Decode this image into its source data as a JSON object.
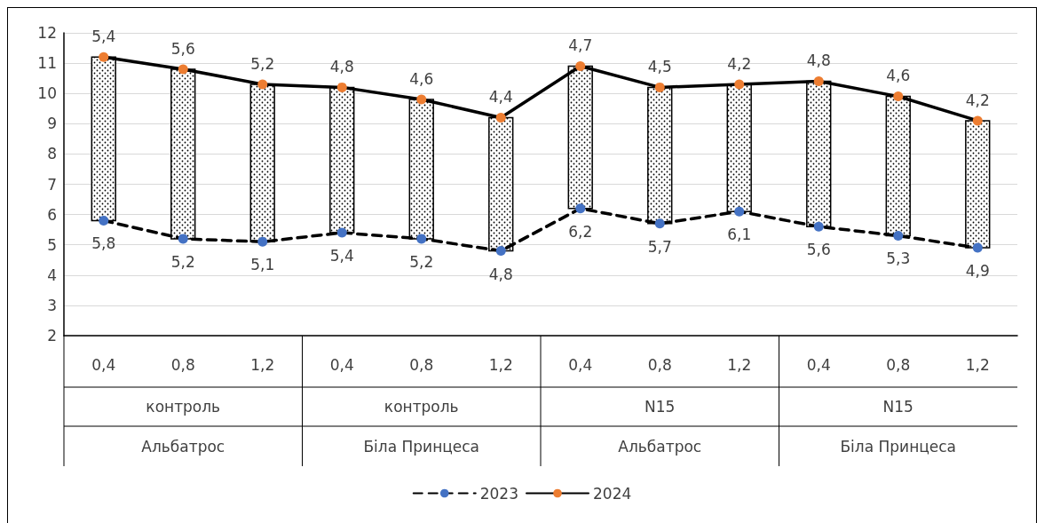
{
  "chart_data": {
    "type": "line",
    "categories": [
      "0,4",
      "0,8",
      "1,2",
      "0,4",
      "0,8",
      "1,2",
      "0,4",
      "0,8",
      "1,2",
      "0,4",
      "0,8",
      "1,2"
    ],
    "annotations": [
      "контроль",
      "контроль",
      "N15",
      "N15",
      "Альбатрос",
      "Біла Принцеса",
      "Альбатрос",
      "Біла Принцеса"
    ],
    "series": [
      {
        "type": "bar",
        "color": "#000000",
        "base": [
          5.8,
          5.2,
          5.1,
          5.4,
          5.2,
          4.8,
          6.2,
          5.7,
          6.1,
          5.6,
          5.3,
          4.9
        ],
        "values": [
          5.4,
          5.6,
          5.2,
          4.8,
          4.6,
          4.4,
          4.7,
          4.5,
          4.2,
          4.8,
          4.6,
          4.2
        ],
        "value_labels": [
          "5,4",
          "5,6",
          "5,2",
          "4,8",
          "4,6",
          "4,4",
          "4,7",
          "4,5",
          "4,2",
          "4,8",
          "4,6",
          "4,2"
        ]
      },
      {
        "name": "2023",
        "color": "#4472c4",
        "line_style": "dashed",
        "values": [
          5.8,
          5.2,
          5.1,
          5.4,
          5.2,
          4.8,
          6.2,
          5.7,
          6.1,
          5.6,
          5.3,
          4.9
        ],
        "value_labels": [
          "5,8",
          "5,2",
          "5,1",
          "5,4",
          "5,2",
          "4,8",
          "6,2",
          "5,7",
          "6,1",
          "5,6",
          "5,3",
          "4,9"
        ]
      },
      {
        "name": "2024",
        "color": "#ed7d31",
        "line_style": "solid",
        "values": [
          11.2,
          10.8,
          10.3,
          10.2,
          9.8,
          9.2,
          10.9,
          10.2,
          10.3,
          10.4,
          9.9,
          9.1
        ]
      }
    ],
    "ylim": [
      2,
      12
    ],
    "yticks": [
      2,
      3,
      4,
      5,
      6,
      7,
      8,
      9,
      10,
      11,
      12
    ],
    "grid": "y",
    "legend": "bottom",
    "marker": "circle"
  }
}
